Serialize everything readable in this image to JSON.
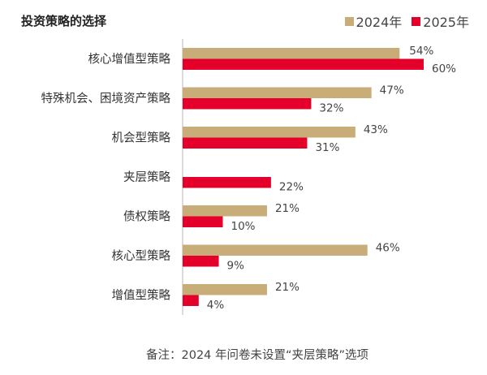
{
  "chart_data": {
    "type": "bar",
    "orientation": "horizontal",
    "title": "投资策略的选择",
    "categories": [
      "核心增值型策略",
      "特殊机会、困境资产策略",
      "机会型策略",
      "夹层策略",
      "债权策略",
      "核心型策略",
      "增值型策略"
    ],
    "series": [
      {
        "name": "2024年",
        "color": "#c9ad78",
        "values": [
          54,
          47,
          43,
          null,
          21,
          46,
          21
        ]
      },
      {
        "name": "2025年",
        "color": "#e4002b",
        "values": [
          60,
          32,
          31,
          22,
          10,
          9,
          4
        ]
      }
    ],
    "value_suffix": "%",
    "xlim": [
      0,
      75
    ],
    "grid": false,
    "legend": "top-right",
    "note": "备注：2024 年问卷未设置“夹层策略”选项"
  }
}
